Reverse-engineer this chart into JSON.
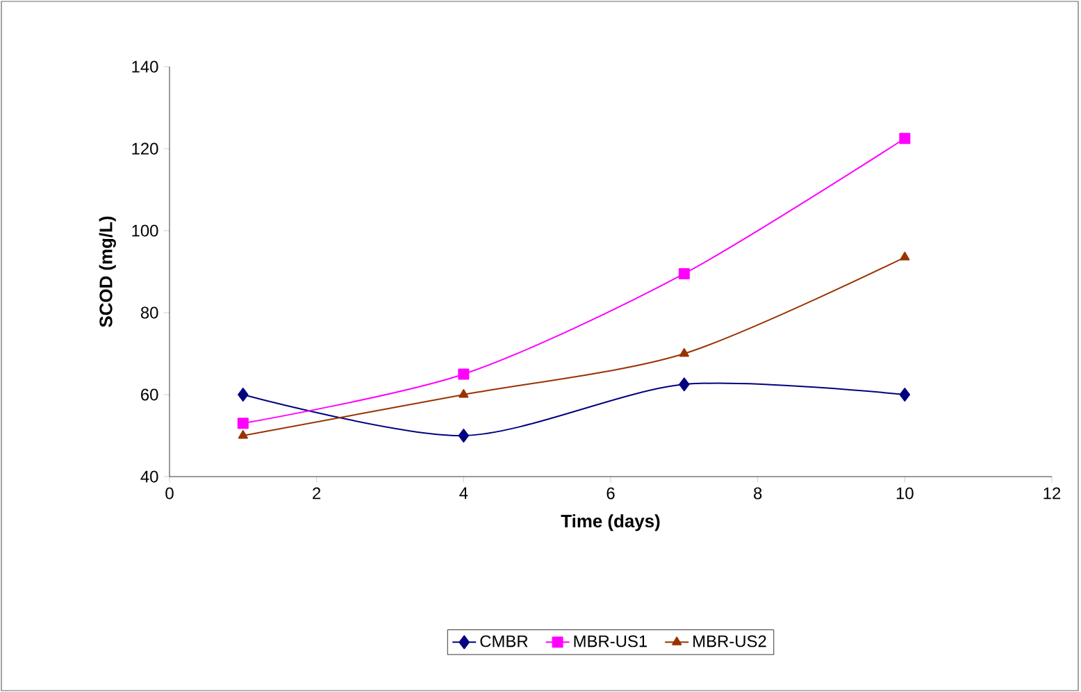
{
  "chart_data": {
    "type": "line",
    "xlabel": "Time (days)",
    "ylabel": "SCOD (mg/L)",
    "xlim": [
      0,
      12
    ],
    "xticks": [
      0,
      2,
      4,
      6,
      8,
      10,
      12
    ],
    "ylim": [
      40,
      140
    ],
    "yticks": [
      40,
      60,
      80,
      100,
      120,
      140
    ],
    "grid": false,
    "legend": "bottom",
    "line_style": "solid",
    "series": [
      {
        "name": "CMBR",
        "color": "#000080",
        "marker": "diamond",
        "x": [
          1,
          4,
          7,
          10
        ],
        "values": [
          60,
          50,
          62.5,
          60
        ]
      },
      {
        "name": "MBR-US1",
        "color": "#ff00ff",
        "marker": "square",
        "x": [
          1,
          4,
          7,
          10
        ],
        "values": [
          53,
          65,
          89.5,
          122.5
        ]
      },
      {
        "name": "MBR-US2",
        "color": "#993300",
        "marker": "triangle",
        "x": [
          1,
          4,
          7,
          10
        ],
        "values": [
          50,
          60,
          70,
          93.5
        ]
      }
    ]
  }
}
